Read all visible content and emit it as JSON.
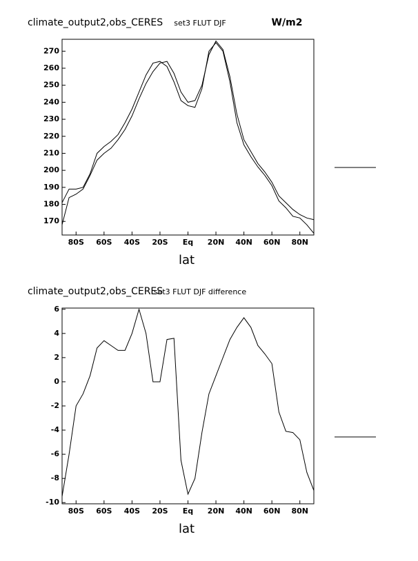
{
  "chart_data": [
    {
      "type": "line",
      "title": "climate_output2,obs_CERES",
      "subtitle": "set3 FLUT DJF",
      "units": "W/m2",
      "xlabel": "lat",
      "x": [
        -90,
        -85,
        -80,
        -75,
        -70,
        -65,
        -60,
        -55,
        -50,
        -45,
        -40,
        -35,
        -30,
        -25,
        -20,
        -15,
        -10,
        -5,
        0,
        5,
        10,
        15,
        20,
        25,
        30,
        35,
        40,
        45,
        50,
        55,
        60,
        65,
        70,
        75,
        80,
        85,
        90
      ],
      "series": [
        {
          "color": "#000000",
          "values": [
            181,
            189,
            189,
            190,
            198,
            210,
            214,
            217,
            221,
            228,
            236,
            246,
            256,
            263,
            264,
            261,
            252,
            241,
            238,
            237,
            248,
            270,
            275,
            270,
            252,
            228,
            215,
            208,
            202,
            197,
            191,
            182,
            178,
            173,
            172,
            168,
            163
          ]
        },
        {
          "color": "#000000",
          "values": [
            168,
            184,
            186,
            189,
            197,
            206,
            210,
            213,
            218,
            224,
            232,
            242,
            251,
            258,
            263,
            264,
            257,
            246,
            240,
            241,
            250,
            268,
            276,
            271,
            255,
            233,
            218,
            211,
            204,
            199,
            193,
            185,
            181,
            177,
            174,
            172,
            171
          ]
        }
      ],
      "xlim": [
        -90,
        90
      ],
      "xticks": [
        {
          "value": -80,
          "label": "80S"
        },
        {
          "value": -60,
          "label": "60S"
        },
        {
          "value": -40,
          "label": "40S"
        },
        {
          "value": -20,
          "label": "20S"
        },
        {
          "value": 0,
          "label": "Eq"
        },
        {
          "value": 20,
          "label": "20N"
        },
        {
          "value": 40,
          "label": "40N"
        },
        {
          "value": 60,
          "label": "60N"
        },
        {
          "value": 80,
          "label": "80N"
        }
      ],
      "ylim": [
        162,
        277
      ],
      "yticks": [
        170,
        180,
        190,
        200,
        210,
        220,
        230,
        240,
        250,
        260,
        270
      ]
    },
    {
      "type": "line",
      "title": "climate_output2,obs_CERES",
      "subtitle": "set3 FLUT DJF difference",
      "xlabel": "lat",
      "x": [
        -90,
        -85,
        -80,
        -75,
        -70,
        -65,
        -60,
        -55,
        -50,
        -45,
        -40,
        -35,
        -30,
        -25,
        -20,
        -15,
        -10,
        -5,
        0,
        5,
        10,
        15,
        20,
        25,
        30,
        35,
        40,
        45,
        50,
        55,
        60,
        65,
        70,
        75,
        80,
        85,
        90
      ],
      "series": [
        {
          "color": "#000000",
          "values": [
            -9.5,
            -6,
            -2,
            -1,
            0.5,
            2.8,
            3.4,
            3,
            2.6,
            2.6,
            4,
            6,
            4,
            0,
            0,
            3.5,
            3.6,
            -6.5,
            -9.3,
            -8,
            -4.2,
            -1,
            0.5,
            2,
            3.5,
            4.5,
            5.3,
            4.5,
            3,
            2.3,
            1.5,
            -2.5,
            -4.1,
            -4.2,
            -4.8,
            -7.5,
            -9
          ]
        }
      ],
      "xlim": [
        -90,
        90
      ],
      "xticks": [
        {
          "value": -80,
          "label": "80S"
        },
        {
          "value": -60,
          "label": "60S"
        },
        {
          "value": -40,
          "label": "40S"
        },
        {
          "value": -20,
          "label": "20S"
        },
        {
          "value": 0,
          "label": "Eq"
        },
        {
          "value": 20,
          "label": "20N"
        },
        {
          "value": 40,
          "label": "40N"
        },
        {
          "value": 60,
          "label": "60N"
        },
        {
          "value": 80,
          "label": "80N"
        }
      ],
      "ylim": [
        -10.1,
        6.1
      ],
      "yticks": [
        -10,
        -8,
        -6,
        -4,
        -2,
        0,
        2,
        4,
        6
      ]
    }
  ]
}
